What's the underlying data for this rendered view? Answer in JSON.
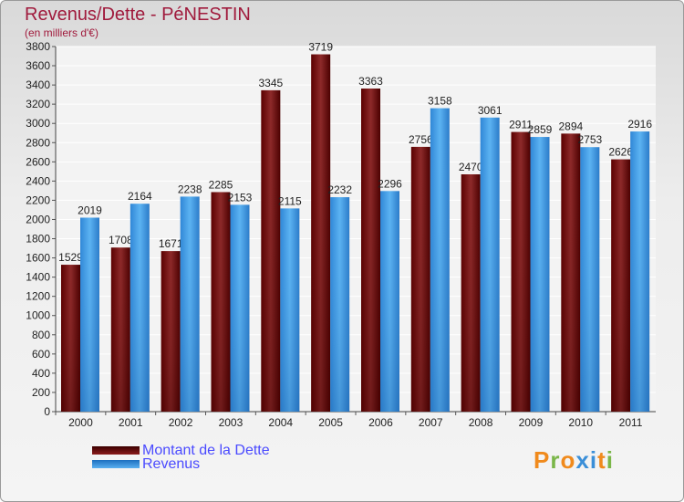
{
  "chart_data": {
    "type": "bar",
    "title": "Revenus/Dette - PéNESTIN",
    "subtitle": "(en milliers d'€)",
    "categories": [
      "2000",
      "2001",
      "2002",
      "2003",
      "2004",
      "2005",
      "2006",
      "2007",
      "2008",
      "2009",
      "2010",
      "2011"
    ],
    "series": [
      {
        "name": "Montant de la Dette",
        "color": "#7b0f0f",
        "values": [
          1529,
          1708,
          1671,
          2285,
          3345,
          3719,
          3363,
          2756,
          2470,
          2911,
          2894,
          2626
        ]
      },
      {
        "name": "Revenus",
        "color": "#3a94e0",
        "values": [
          2019,
          2164,
          2238,
          2153,
          2115,
          2232,
          2296,
          3158,
          3061,
          2859,
          2753,
          2916
        ]
      }
    ],
    "ylim": [
      0,
      3800
    ],
    "yticks": [
      0,
      200,
      400,
      600,
      800,
      1000,
      1200,
      1400,
      1600,
      1800,
      2000,
      2200,
      2400,
      2600,
      2800,
      3000,
      3200,
      3400,
      3600,
      3800
    ],
    "grid": true,
    "legend_position": "bottom-left"
  },
  "logo": {
    "letters": [
      "P",
      "r",
      "o",
      "x",
      "i",
      "t",
      "i"
    ]
  }
}
